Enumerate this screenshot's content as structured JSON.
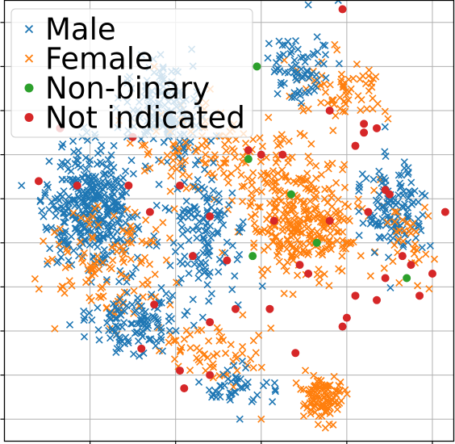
{
  "chart_data": {
    "type": "scatter",
    "title": "",
    "xlabel": "",
    "ylabel": "",
    "xlim": [
      -55,
      50
    ],
    "ylim": [
      -45,
      55
    ],
    "grid": true,
    "tick_labels_visible": false,
    "legend": {
      "placement": "top-left"
    },
    "series": [
      {
        "name": "Male",
        "marker": "x",
        "color": "#1f77b4",
        "clusters": [
          {
            "center": [
              -35,
              8
            ],
            "spread": [
              9,
              11
            ],
            "count": 380
          },
          {
            "center": [
              -18,
              30
            ],
            "spread": [
              8,
              9
            ],
            "count": 160
          },
          {
            "center": [
              -8,
              2
            ],
            "spread": [
              7,
              14
            ],
            "count": 140
          },
          {
            "center": [
              36,
              8
            ],
            "spread": [
              6,
              10
            ],
            "count": 130
          },
          {
            "center": [
              -24,
              -18
            ],
            "spread": [
              10,
              6
            ],
            "count": 120
          },
          {
            "center": [
              14,
              40
            ],
            "spread": [
              7,
              7
            ],
            "count": 70
          },
          {
            "center": [
              0,
              -33
            ],
            "spread": [
              6,
              4
            ],
            "count": 45
          }
        ],
        "points": [
          [
            -51,
            13
          ],
          [
            16,
            54
          ],
          [
            23,
            55
          ],
          [
            -40,
            -4
          ],
          [
            -28,
            -24
          ],
          [
            0,
            -40
          ]
        ]
      },
      {
        "name": "Female",
        "marker": "x",
        "color": "#ff7f0e",
        "clusters": [
          {
            "center": [
              15,
              5
            ],
            "spread": [
              12,
              10
            ],
            "count": 320
          },
          {
            "center": [
              20,
              -35
            ],
            "spread": [
              4,
              4
            ],
            "count": 110
          },
          {
            "center": [
              -5,
              20
            ],
            "spread": [
              16,
              9
            ],
            "count": 130
          },
          {
            "center": [
              -30,
              -5
            ],
            "spread": [
              13,
              11
            ],
            "count": 120
          },
          {
            "center": [
              23,
              35
            ],
            "spread": [
              9,
              7
            ],
            "count": 70
          },
          {
            "center": [
              -5,
              -25
            ],
            "spread": [
              9,
              6
            ],
            "count": 60
          },
          {
            "center": [
              40,
              0
            ],
            "spread": [
              5,
              8
            ],
            "count": 35
          }
        ],
        "points": [
          [
            20,
            -42
          ],
          [
            -20,
            40
          ],
          [
            5,
            -40
          ]
        ]
      },
      {
        "name": "Non-binary",
        "marker": "o",
        "color": "#2ca02c",
        "points": [
          [
            4,
            40
          ],
          [
            2,
            19
          ],
          [
            12,
            11
          ],
          [
            18,
            0
          ],
          [
            3,
            -3
          ],
          [
            39,
            -8
          ]
        ]
      },
      {
        "name": "Not indicated",
        "marker": "o",
        "color": "#d62728",
        "points": [
          [
            24,
            53
          ],
          [
            -42,
            26
          ],
          [
            -25,
            24
          ],
          [
            -47,
            14
          ],
          [
            -38,
            13
          ],
          [
            -26,
            13
          ],
          [
            -14,
            13
          ],
          [
            2,
            21
          ],
          [
            5,
            20
          ],
          [
            10,
            20
          ],
          [
            21,
            30
          ],
          [
            27,
            22
          ],
          [
            29,
            25
          ],
          [
            29,
            27
          ],
          [
            32,
            26
          ],
          [
            34,
            12
          ],
          [
            -7,
            6
          ],
          [
            -11,
            -3
          ],
          [
            -21,
            7
          ],
          [
            8,
            5
          ],
          [
            21,
            5
          ],
          [
            30,
            7
          ],
          [
            35,
            11
          ],
          [
            48,
            7
          ],
          [
            -3,
            -4
          ],
          [
            14,
            -5
          ],
          [
            16,
            -7
          ],
          [
            -20,
            -14
          ],
          [
            -1,
            -15
          ],
          [
            7,
            -15
          ],
          [
            -7,
            -18
          ],
          [
            32,
            -13
          ],
          [
            27,
            -12
          ],
          [
            38,
            -3
          ],
          [
            40,
            -5
          ],
          [
            45,
            -7
          ],
          [
            25,
            -17
          ],
          [
            34,
            -8
          ],
          [
            42,
            -12
          ],
          [
            -23,
            -24
          ],
          [
            13,
            -25
          ],
          [
            -7,
            -30
          ],
          [
            -14,
            -29
          ],
          [
            -13,
            -33
          ],
          [
            24,
            -19
          ]
        ]
      }
    ]
  }
}
